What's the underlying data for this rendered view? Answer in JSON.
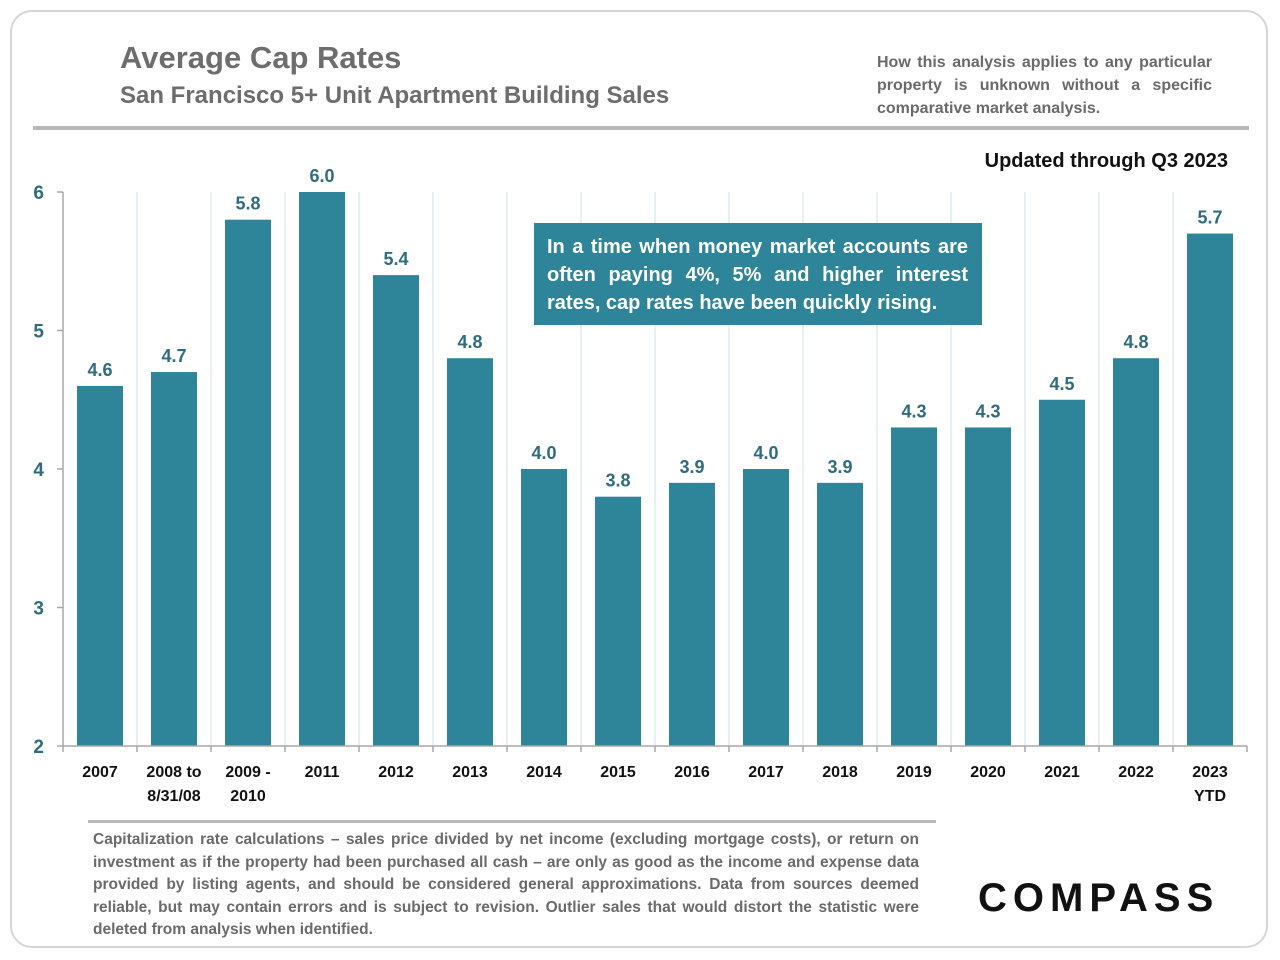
{
  "header": {
    "title": "Average Cap Rates",
    "subtitle": "San Francisco 5+ Unit Apartment Building Sales",
    "disclaimer": "How this analysis applies to any particular property is unknown without a specific comparative market analysis.",
    "updated": "Updated through Q3 2023"
  },
  "callout": "In a time when money market accounts are often paying 4%, 5% and higher interest rates, cap rates have been quickly rising.",
  "footnote": "Capitalization rate calculations – sales price divided by net income (excluding mortgage costs), or return on investment as if the property had been purchased all cash – are only as good as the income and expense data provided by listing agents, and should be considered general approximations. Data from sources deemed reliable, but may contain errors and is subject to revision. Outlier sales that would distort the statistic were deleted from analysis when identified.",
  "logo": "COMPASS",
  "colors": {
    "bar": "#2e8499",
    "label": "#2f6c80",
    "grid": "#cfe0e8"
  },
  "chart_data": {
    "type": "bar",
    "title": "Average Cap Rates",
    "xlabel": "",
    "ylabel": "",
    "ylim": [
      2,
      6
    ],
    "yticks": [
      2,
      3,
      4,
      5,
      6
    ],
    "grid": true,
    "categories": [
      [
        "2007"
      ],
      [
        "2008 to",
        "8/31/08"
      ],
      [
        "2009 -",
        "2010"
      ],
      [
        "2011"
      ],
      [
        "2012"
      ],
      [
        "2013"
      ],
      [
        "2014"
      ],
      [
        "2015"
      ],
      [
        "2016"
      ],
      [
        "2017"
      ],
      [
        "2018"
      ],
      [
        "2019"
      ],
      [
        "2020"
      ],
      [
        "2021"
      ],
      [
        "2022"
      ],
      [
        "2023",
        "YTD"
      ]
    ],
    "values": [
      4.6,
      4.7,
      5.8,
      6.0,
      5.4,
      4.8,
      4.0,
      3.8,
      3.9,
      4.0,
      3.9,
      4.3,
      4.3,
      4.5,
      4.8,
      5.7
    ],
    "value_labels": [
      "4.6",
      "4.7",
      "5.8",
      "6.0",
      "5.4",
      "4.8",
      "4.0",
      "3.8",
      "3.9",
      "4.0",
      "3.9",
      "4.3",
      "4.3",
      "4.5",
      "4.8",
      "5.7"
    ]
  }
}
